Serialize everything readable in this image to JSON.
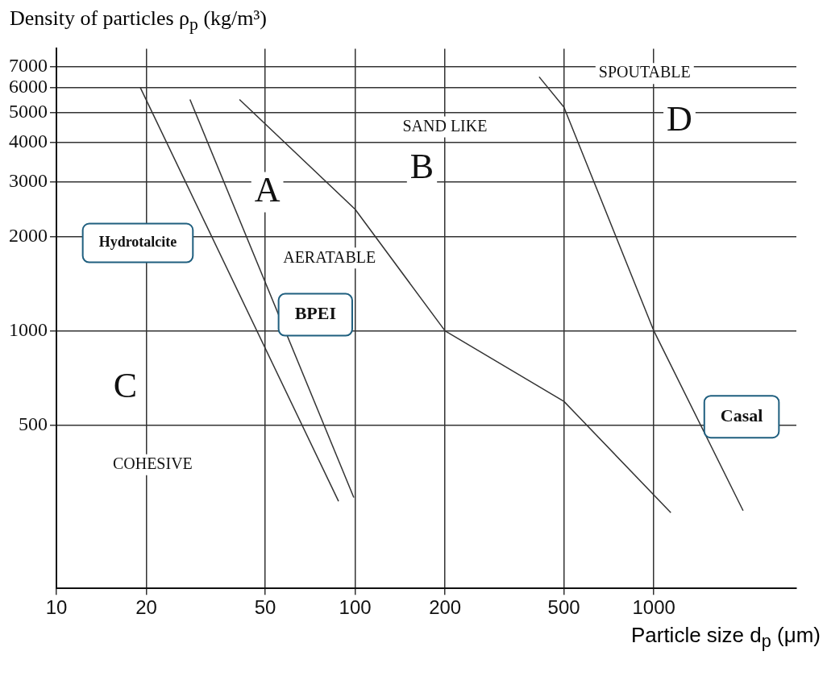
{
  "chart_data": {
    "type": "line",
    "xlabel": "Particle size d$_{p}$ (μm)",
    "ylabel": "Density of particles ρ$_{p}$ (kg/m³)",
    "log": "xy",
    "xlim": [
      10,
      3000
    ],
    "ylim": [
      150,
      8000
    ],
    "xticks": [
      10,
      20,
      50,
      100,
      200,
      500,
      1000
    ],
    "yticks": [
      500,
      1000,
      2000,
      3000,
      4000,
      5000,
      6000,
      7000
    ],
    "grid": true,
    "legend": false,
    "marker": "none",
    "series": [
      {
        "color": "#333333",
        "x": [
          19.1,
          88
        ],
        "values": [
          6000,
          285
        ]
      },
      {
        "color": "#333333",
        "x": [
          28,
          99
        ],
        "values": [
          5500,
          293
        ]
      },
      {
        "color": "#333333",
        "x": [
          41,
          100,
          200,
          500,
          1140
        ],
        "values": [
          5500,
          2450,
          1000,
          595,
          262
        ]
      },
      {
        "color": "#333333",
        "x": [
          413,
          500,
          1000,
          1990
        ],
        "values": [
          6500,
          5200,
          1000,
          266
        ]
      }
    ],
    "annotations": [
      "A",
      "B",
      "C",
      "D",
      "SAND LIKE",
      "SPOUTABLE",
      "AERATABLE",
      "COHESIVE",
      "Hydrotalcite",
      "BPEI",
      "Casal"
    ]
  }
}
